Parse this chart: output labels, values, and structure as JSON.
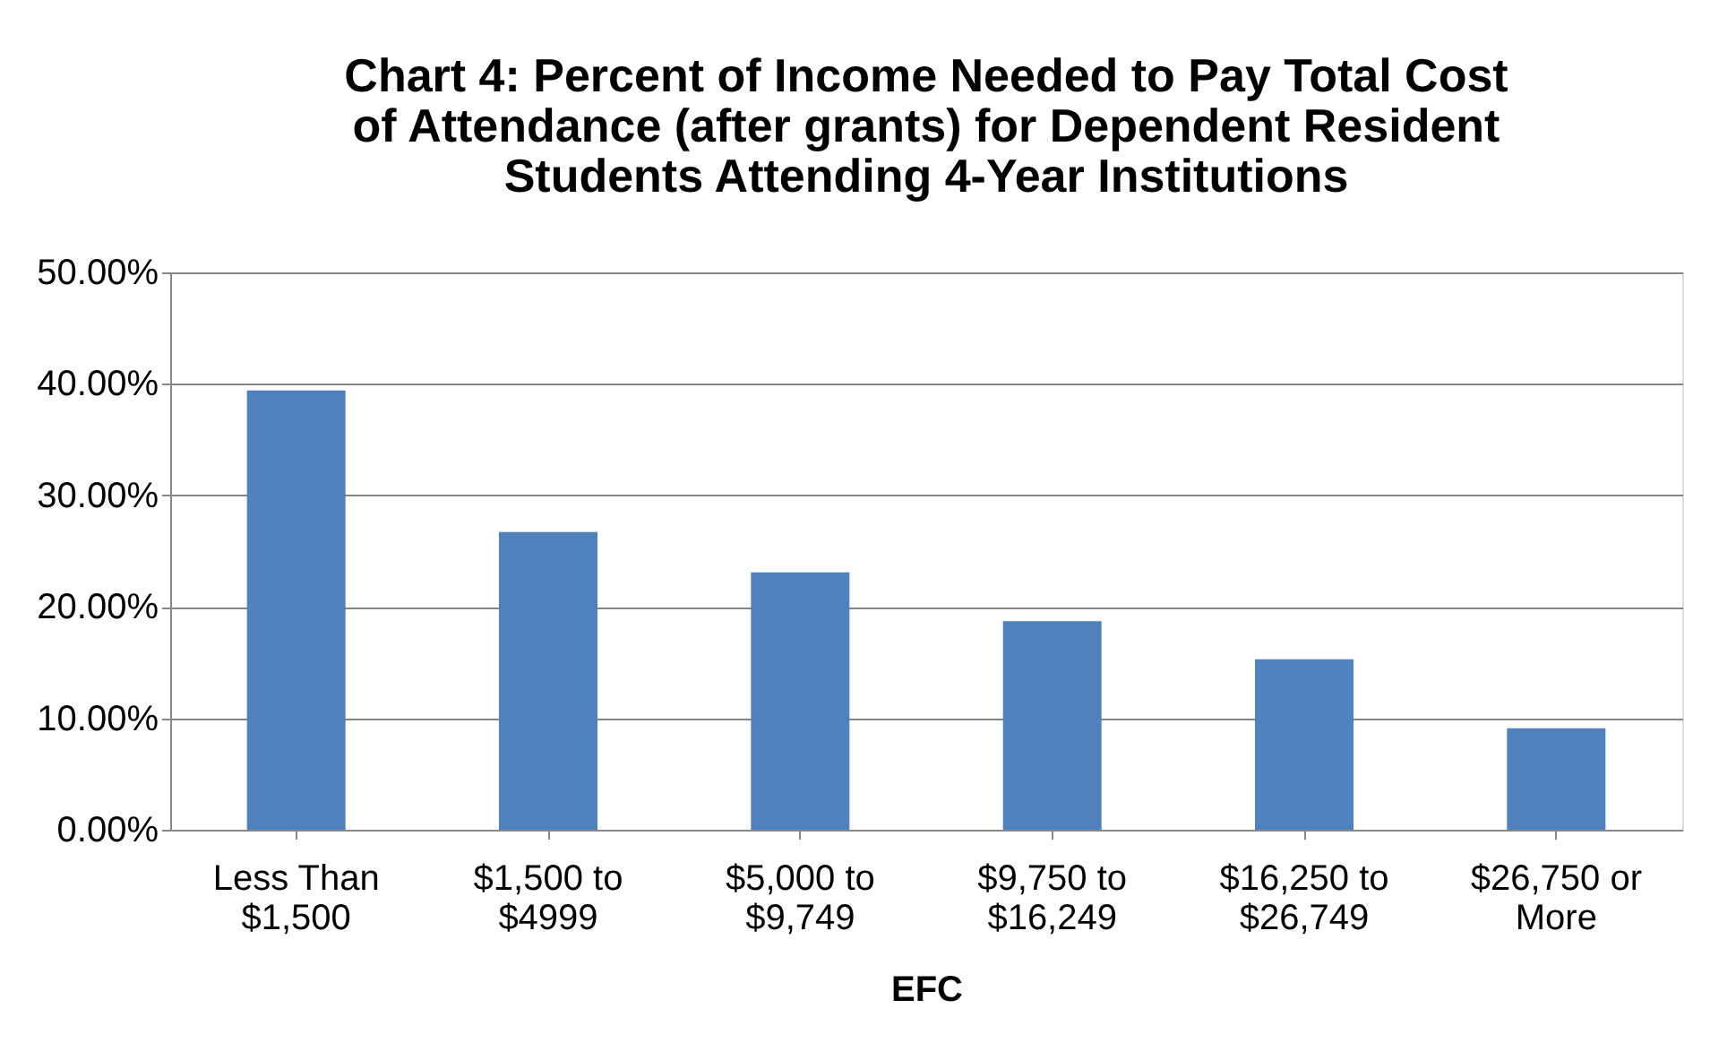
{
  "chart_data": {
    "type": "bar",
    "title": "Chart 4: Percent of Income Needed to Pay Total Cost of Attendance (after grants) for Dependent Resident Students Attending 4-Year Institutions",
    "xlabel": "EFC",
    "categories": [
      "Less Than $1,500",
      "$1,500 to $4999",
      "$5,000 to $9,749",
      "$9,750 to $16,249",
      "$16,250 to $26,749",
      "$26,750 or More"
    ],
    "values": [
      39.4,
      26.7,
      23.1,
      18.7,
      15.3,
      9.1
    ],
    "color": "#4f81bd",
    "ylim": [
      0,
      50
    ],
    "yticks": [
      {
        "value": 0,
        "label": "0.00%"
      },
      {
        "value": 10,
        "label": "10.00%"
      },
      {
        "value": 20,
        "label": "20.00%"
      },
      {
        "value": 30,
        "label": "30.00%"
      },
      {
        "value": 40,
        "label": "40.00%"
      },
      {
        "value": 50,
        "label": "50.00%"
      }
    ],
    "grid": "y"
  }
}
